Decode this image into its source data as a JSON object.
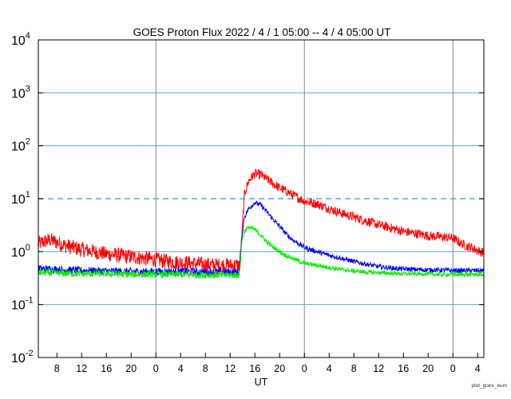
{
  "chart_data": {
    "type": "line",
    "title": "GOES Proton Flux   2022  /  4  /  1    05:00 --  4  /  4    05:00    UT",
    "xlabel": "UT",
    "credit": "plot_goes_eum",
    "y_scale": "log",
    "ylim": [
      0.01,
      10000
    ],
    "y_tick_labels": [
      {
        "value": 0.01,
        "base": "10",
        "exp": "-2"
      },
      {
        "value": 0.1,
        "base": "10",
        "exp": "-1"
      },
      {
        "value": 1,
        "base": "10",
        "exp": "0"
      },
      {
        "value": 10,
        "base": "10",
        "exp": "1"
      },
      {
        "value": 100,
        "base": "10",
        "exp": "2"
      },
      {
        "value": 1000,
        "base": "10",
        "exp": "3"
      },
      {
        "value": 10000,
        "base": "10",
        "exp": "4"
      }
    ],
    "x_range_hours_utc": [
      5,
      77
    ],
    "x_ticks": [
      {
        "hour": 8,
        "label": "8"
      },
      {
        "hour": 12,
        "label": "12"
      },
      {
        "hour": 16,
        "label": "16"
      },
      {
        "hour": 20,
        "label": "20"
      },
      {
        "hour": 24,
        "label": "0"
      },
      {
        "hour": 28,
        "label": "4"
      },
      {
        "hour": 32,
        "label": "8"
      },
      {
        "hour": 36,
        "label": "12"
      },
      {
        "hour": 40,
        "label": "16"
      },
      {
        "hour": 44,
        "label": "20"
      },
      {
        "hour": 48,
        "label": "0"
      },
      {
        "hour": 52,
        "label": "4"
      },
      {
        "hour": 56,
        "label": "8"
      },
      {
        "hour": 60,
        "label": "12"
      },
      {
        "hour": 64,
        "label": "16"
      },
      {
        "hour": 68,
        "label": "20"
      },
      {
        "hour": 72,
        "label": "0"
      },
      {
        "hour": 76,
        "label": "4"
      }
    ],
    "day_boundaries_hours": [
      24,
      48,
      72
    ],
    "horizontal_reference_lines": [
      {
        "value": 0.1,
        "style": "solid"
      },
      {
        "value": 1,
        "style": "solid"
      },
      {
        "value": 10,
        "style": "dashed"
      },
      {
        "value": 100,
        "style": "solid"
      },
      {
        "value": 1000,
        "style": "solid"
      }
    ],
    "grid_color": "#55a8e6",
    "day_line_color": "#888888",
    "series": [
      {
        "color": "#ff0000",
        "x": [
          5,
          6,
          7,
          8,
          9,
          10,
          12,
          14,
          16,
          18,
          20,
          22,
          24,
          26,
          28,
          30,
          32,
          34,
          36,
          37.5,
          37.9,
          38.3,
          39,
          40,
          41,
          42,
          43,
          44,
          45,
          46,
          48,
          50,
          52,
          54,
          56,
          58,
          60,
          62,
          64,
          66,
          68,
          70,
          72,
          73,
          74,
          75,
          76,
          77
        ],
        "y": [
          1.4,
          1.55,
          1.65,
          1.5,
          1.35,
          1.25,
          1.1,
          1.0,
          0.9,
          0.85,
          0.8,
          0.75,
          0.7,
          0.65,
          0.62,
          0.6,
          0.57,
          0.55,
          0.55,
          0.55,
          2.0,
          12.0,
          22,
          30,
          28,
          23,
          19,
          16,
          14,
          12,
          9.0,
          8.0,
          6.5,
          5.3,
          4.5,
          3.8,
          3.2,
          2.8,
          2.4,
          2.2,
          2.0,
          1.9,
          1.8,
          1.5,
          1.3,
          1.2,
          1.05,
          0.95
        ]
      },
      {
        "color": "#0000ff",
        "x": [
          5,
          8,
          12,
          16,
          20,
          24,
          28,
          32,
          36,
          37.5,
          37.9,
          38.3,
          39,
          40,
          41,
          42,
          43,
          44,
          45,
          46,
          48,
          50,
          52,
          54,
          56,
          58,
          60,
          62,
          64,
          66,
          68,
          70,
          72,
          74,
          77
        ],
        "y": [
          0.48,
          0.46,
          0.44,
          0.43,
          0.42,
          0.42,
          0.42,
          0.41,
          0.41,
          0.41,
          2.0,
          4.5,
          6.5,
          8.5,
          7.5,
          5.5,
          4.0,
          3.0,
          2.2,
          1.7,
          1.2,
          1.0,
          0.85,
          0.75,
          0.65,
          0.58,
          0.52,
          0.49,
          0.47,
          0.46,
          0.45,
          0.45,
          0.44,
          0.44,
          0.44
        ]
      },
      {
        "color": "#00ee00",
        "x": [
          5,
          8,
          12,
          16,
          20,
          24,
          28,
          32,
          36,
          37.5,
          37.9,
          38.3,
          39,
          40,
          41,
          42,
          43,
          44,
          45,
          46,
          48,
          50,
          52,
          54,
          56,
          58,
          60,
          62,
          64,
          66,
          68,
          70,
          72,
          74,
          77
        ],
        "y": [
          0.4,
          0.39,
          0.38,
          0.38,
          0.37,
          0.37,
          0.37,
          0.36,
          0.36,
          0.36,
          1.6,
          2.4,
          2.9,
          2.6,
          2.0,
          1.5,
          1.2,
          1.0,
          0.85,
          0.75,
          0.6,
          0.55,
          0.5,
          0.46,
          0.43,
          0.41,
          0.4,
          0.39,
          0.38,
          0.38,
          0.38,
          0.37,
          0.37,
          0.37,
          0.37
        ]
      }
    ]
  }
}
